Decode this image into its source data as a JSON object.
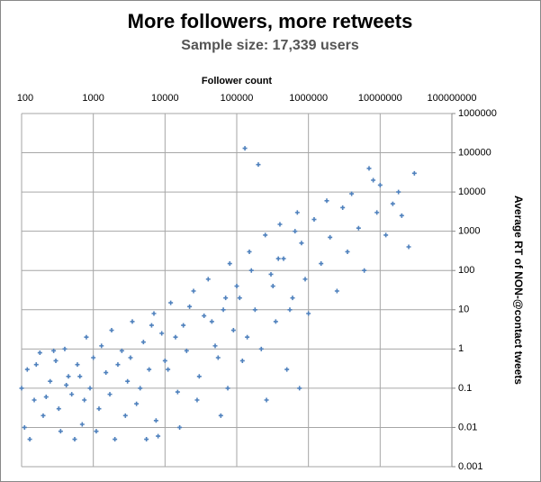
{
  "chart_data": {
    "type": "scatter",
    "title": "More followers, more retweets",
    "subtitle": "Sample size: 17,339 users",
    "x_label": "Follower count",
    "y_label": "Average RT of NON-@contact tweets",
    "xscale": "log",
    "yscale": "log",
    "grid": true,
    "color": "#4f81bd",
    "xlim": [
      100,
      100000000
    ],
    "ylim": [
      0.001,
      1000000
    ],
    "xticks": [
      100,
      1000,
      10000,
      100000,
      1000000,
      10000000,
      100000000
    ],
    "yticks": [
      0.001,
      0.01,
      0.1,
      1,
      10,
      100,
      1000,
      10000,
      100000,
      1000000
    ],
    "x": [
      100,
      120,
      150,
      180,
      200,
      250,
      300,
      350,
      400,
      450,
      500,
      600,
      700,
      800,
      900,
      1000,
      1200,
      1500,
      1800,
      2000,
      2500,
      3000,
      3500,
      4000,
      5000,
      6000,
      7000,
      8000,
      9000,
      10000,
      12000,
      15000,
      18000,
      20000,
      25000,
      30000,
      35000,
      40000,
      50000,
      60000,
      70000,
      80000,
      90000,
      100000,
      120000,
      130000,
      150000,
      180000,
      200000,
      220000,
      250000,
      300000,
      350000,
      400000,
      450000,
      500000,
      600000,
      700000,
      800000,
      900000,
      1000000,
      1200000,
      1500000,
      1800000,
      2000000,
      2500000,
      3000000,
      3500000,
      4000000,
      5000000,
      6000000,
      7000000,
      8000000,
      9000000,
      10000000,
      12000000,
      15000000,
      18000000,
      20000000,
      30000000,
      25000000,
      110,
      130,
      160,
      220,
      280,
      330,
      420,
      550,
      650,
      750,
      1100,
      1300,
      1700,
      2200,
      2800,
      3300,
      4500,
      5500,
      6500,
      7500,
      11000,
      14000,
      16000,
      22000,
      28000,
      45000,
      55000,
      65000,
      75000,
      110000,
      140000,
      160000,
      260000,
      320000,
      380000,
      550000,
      650000,
      750000
    ],
    "y": [
      0.1,
      0.3,
      0.05,
      0.8,
      0.02,
      0.15,
      0.5,
      0.008,
      1,
      0.2,
      0.07,
      0.4,
      0.012,
      2,
      0.1,
      0.6,
      0.03,
      0.25,
      3,
      0.005,
      0.9,
      0.15,
      5,
      0.04,
      1.5,
      0.3,
      8,
      0.006,
      2.5,
      0.5,
      15,
      0.08,
      4,
      0.9,
      30,
      0.2,
      7,
      60,
      1.2,
      0.02,
      20,
      150,
      3,
      40,
      0.5,
      130000,
      300,
      10,
      50000,
      1,
      800,
      80,
      5,
      1500,
      200,
      0.3,
      20,
      3000,
      500,
      60,
      8,
      2000,
      150,
      6000,
      700,
      30,
      4000,
      300,
      9000,
      1200,
      100,
      40000,
      20000,
      3000,
      15000,
      800,
      5000,
      10000,
      2500,
      30000,
      400,
      0.01,
      0.005,
      0.4,
      0.06,
      0.9,
      0.03,
      0.12,
      0.005,
      0.2,
      0.05,
      0.008,
      1.2,
      0.07,
      0.4,
      0.02,
      0.6,
      0.1,
      0.005,
      4,
      0.015,
      0.3,
      2,
      0.01,
      12,
      0.05,
      5,
      0.6,
      10,
      0.1,
      20,
      2,
      100,
      0.05,
      40,
      200,
      10,
      1000,
      0.1
    ]
  }
}
